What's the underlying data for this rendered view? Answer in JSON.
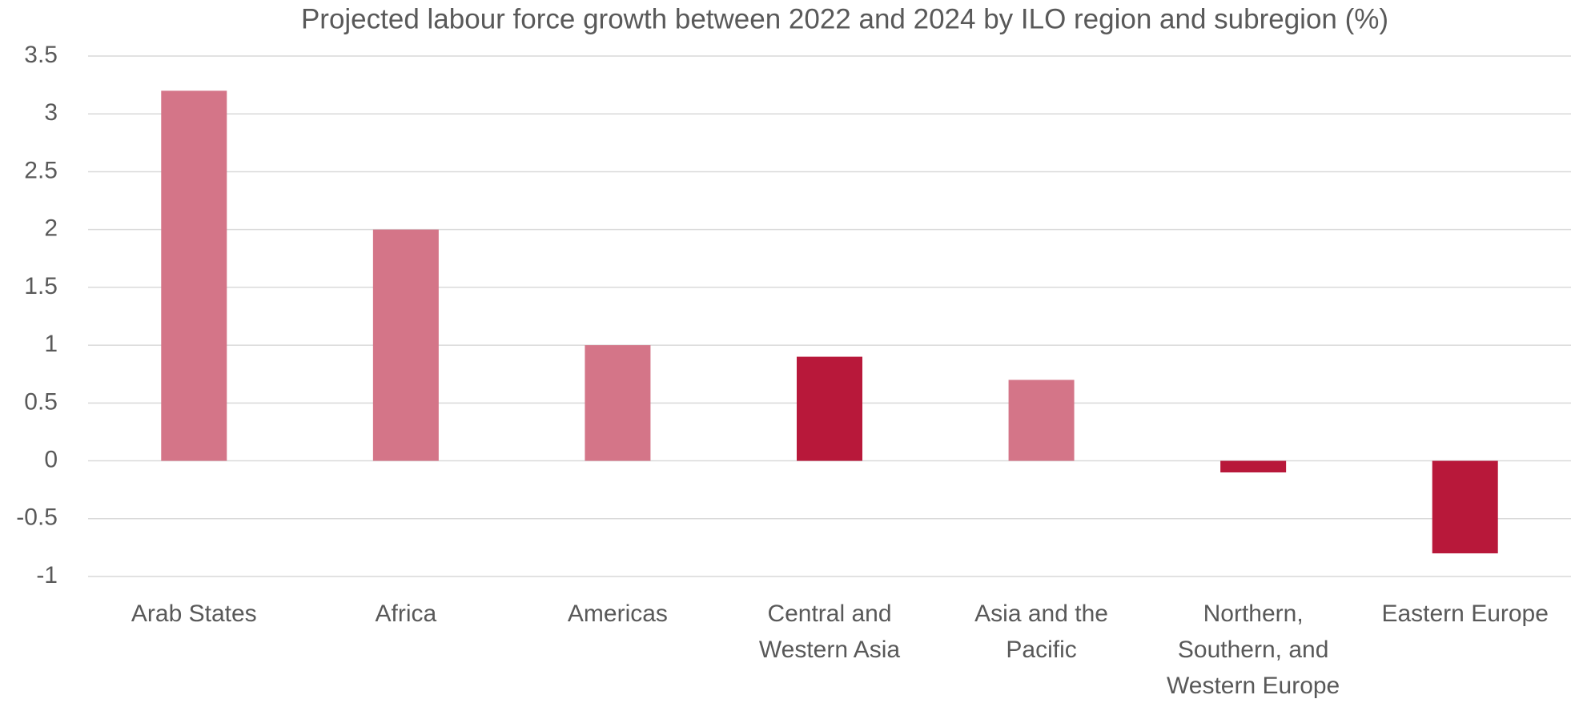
{
  "chart_data": {
    "type": "bar",
    "title": "Projected labour force growth between 2022 and 2024 by ILO region and subregion (%)",
    "categories": [
      "Arab States",
      "Africa",
      "Americas",
      "Central and Western Asia",
      "Asia and the Pacific",
      "Northern, Southern, and Western Europe",
      "Eastern Europe"
    ],
    "values": [
      3.2,
      2,
      1,
      0.9,
      0.7,
      -0.1,
      -0.8
    ],
    "colors": [
      "#d47588",
      "#d47588",
      "#d47588",
      "#b8183a",
      "#d47588",
      "#b8183a",
      "#b8183a"
    ],
    "ylim": [
      -1,
      3.5
    ],
    "yticks": [
      -1,
      -0.5,
      0,
      0.5,
      1,
      1.5,
      2,
      2.5,
      3,
      3.5
    ],
    "grid": true
  }
}
